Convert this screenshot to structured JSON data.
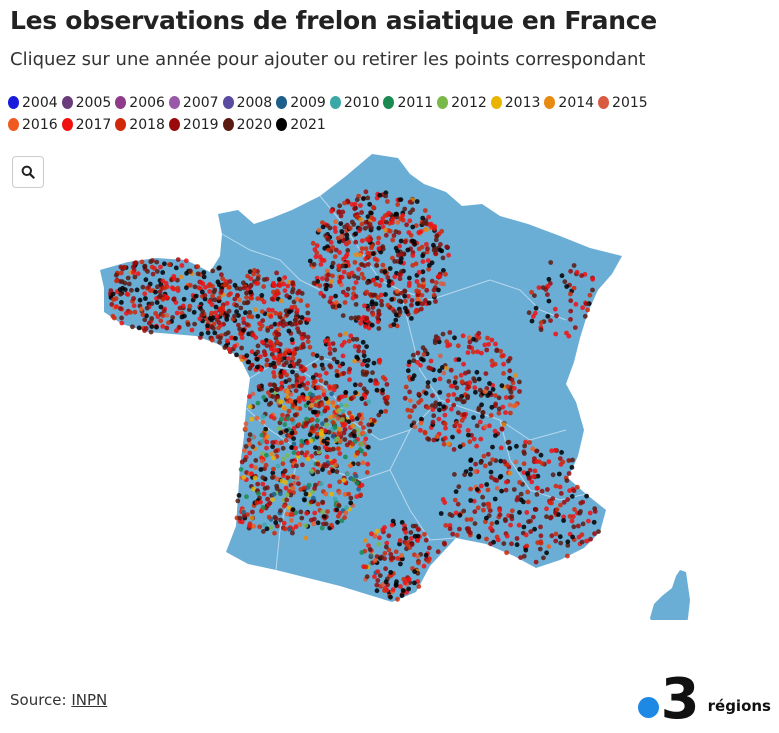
{
  "title": "Les observations de frelon asiatique en France",
  "subtitle": "Cliquez sur une année pour ajouter ou retirer les points correspondant",
  "legend": [
    {
      "label": "2004",
      "color": "#1a1adc"
    },
    {
      "label": "2005",
      "color": "#6b3c7a"
    },
    {
      "label": "2006",
      "color": "#8e3b8a"
    },
    {
      "label": "2007",
      "color": "#9a58a8"
    },
    {
      "label": "2008",
      "color": "#5a4aa0"
    },
    {
      "label": "2009",
      "color": "#1e5f8a"
    },
    {
      "label": "2010",
      "color": "#3aa8a8"
    },
    {
      "label": "2011",
      "color": "#1a8a50"
    },
    {
      "label": "2012",
      "color": "#7ab84a"
    },
    {
      "label": "2013",
      "color": "#e8b400"
    },
    {
      "label": "2014",
      "color": "#e88a10"
    },
    {
      "label": "2015",
      "color": "#d85a40"
    },
    {
      "label": "2016",
      "color": "#f05a20"
    },
    {
      "label": "2017",
      "color": "#f01010"
    },
    {
      "label": "2018",
      "color": "#d02808"
    },
    {
      "label": "2019",
      "color": "#9a0a0a"
    },
    {
      "label": "2020",
      "color": "#5a1a10"
    },
    {
      "label": "2021",
      "color": "#000000"
    }
  ],
  "map": {
    "land_color": "#6aaed6",
    "border_color": "#b8d8ec",
    "zoom_icon": "search-icon"
  },
  "source": {
    "label": "Source: ",
    "link": "INPN"
  },
  "brand": {
    "number": "3",
    "text": "régions"
  }
}
